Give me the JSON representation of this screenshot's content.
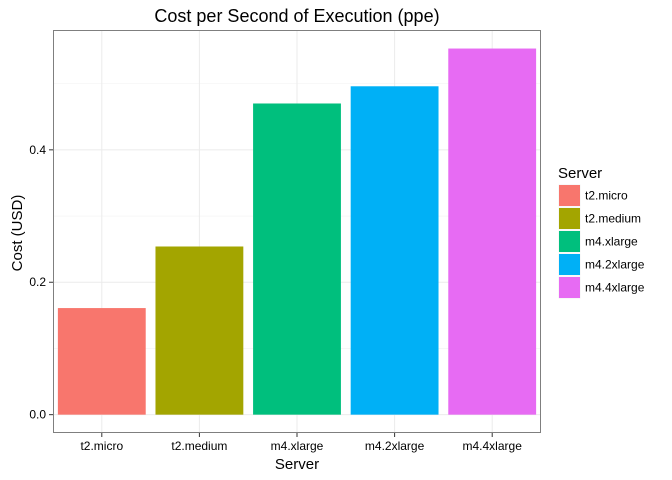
{
  "chart_data": {
    "type": "bar",
    "title": "Cost per Second of Execution (ppe)",
    "xlabel": "Server",
    "ylabel": "Cost (USD)",
    "categories": [
      "t2.micro",
      "t2.medium",
      "m4.xlarge",
      "m4.2xlarge",
      "m4.4xlarge"
    ],
    "values": [
      0.161,
      0.254,
      0.47,
      0.496,
      0.553
    ],
    "ylim": [
      -0.0277,
      0.581
    ],
    "yticks": [
      0.0,
      0.2,
      0.4
    ],
    "ytick_labels": [
      "0.0",
      "0.2",
      "0.4"
    ],
    "colors": [
      "#F8766D",
      "#A3A500",
      "#00BF7D",
      "#00B0F6",
      "#E76BF3"
    ],
    "grid": true,
    "legend": {
      "title": "Server",
      "position": "right",
      "entries": [
        "t2.micro",
        "t2.medium",
        "m4.xlarge",
        "m4.2xlarge",
        "m4.4xlarge"
      ]
    }
  }
}
